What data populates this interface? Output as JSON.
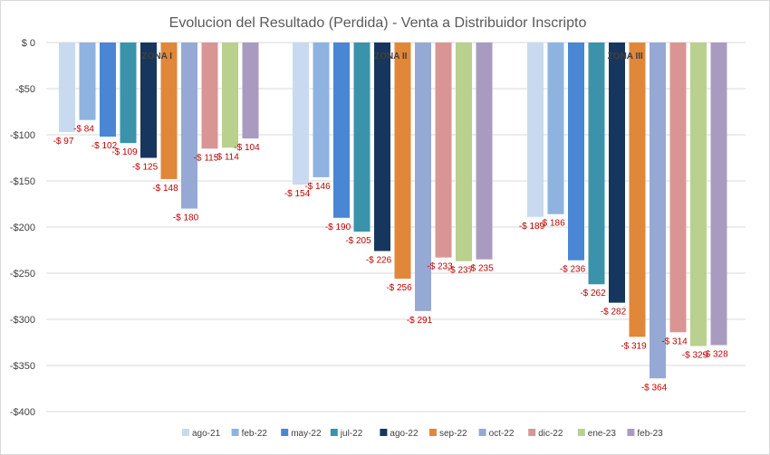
{
  "chart_data": {
    "type": "bar",
    "title": "Evolucion del Resultado (Perdida) - Venta a Distribuidor Inscripto",
    "categories": [
      "ZONA I",
      "ZONA II",
      "ZONA III"
    ],
    "ylim": [
      -400,
      0
    ],
    "y_ticks": [
      0,
      -50,
      -100,
      -150,
      -200,
      -250,
      -300,
      -350,
      -400
    ],
    "y_tick_labels": [
      "$ 0",
      "-$50",
      "-$100",
      "-$150",
      "-$200",
      "-$250",
      "-$300",
      "-$350",
      "-$400"
    ],
    "grid": true,
    "legend_position": "bottom",
    "series": [
      {
        "name": "ago-21",
        "color": "#c9daf0",
        "values": [
          -97,
          -154,
          -189
        ],
        "labels": [
          "-$ 97",
          "-$ 154",
          "-$ 189"
        ]
      },
      {
        "name": "feb-22",
        "color": "#8fb3e0",
        "values": [
          -84,
          -146,
          -186
        ],
        "labels": [
          "-$ 84",
          "-$ 146",
          "-$ 186"
        ]
      },
      {
        "name": "may-22",
        "color": "#4a86d4",
        "values": [
          -102,
          -190,
          -236
        ],
        "labels": [
          "-$ 102",
          "-$ 190",
          "-$ 236"
        ]
      },
      {
        "name": "jul-22",
        "color": "#3a93ab",
        "values": [
          -109,
          -205,
          -262
        ],
        "labels": [
          "-$ 109",
          "-$ 205",
          "-$ 262"
        ]
      },
      {
        "name": "ago-22",
        "color": "#17365d",
        "values": [
          -125,
          -226,
          -282
        ],
        "labels": [
          "-$ 125",
          "-$ 226",
          "-$ 282"
        ]
      },
      {
        "name": "sep-22",
        "color": "#e0873a",
        "values": [
          -148,
          -256,
          -319
        ],
        "labels": [
          "-$ 148",
          "-$ 256",
          "-$ 319"
        ]
      },
      {
        "name": "oct-22",
        "color": "#96a9d4",
        "values": [
          -180,
          -291,
          -364
        ],
        "labels": [
          "-$ 180",
          "-$ 291",
          "-$ 364"
        ]
      },
      {
        "name": "dic-22",
        "color": "#d99594",
        "values": [
          -115,
          -233,
          -314
        ],
        "labels": [
          "-$ 115",
          "-$ 233",
          "-$ 314"
        ]
      },
      {
        "name": "ene-23",
        "color": "#b9d08f",
        "values": [
          -114,
          -237,
          -329
        ],
        "labels": [
          "-$ 114",
          "-$ 237",
          "-$ 329"
        ]
      },
      {
        "name": "feb-23",
        "color": "#a99bc0",
        "values": [
          -104,
          -235,
          -328
        ],
        "labels": [
          "-$ 104",
          "-$ 235",
          "-$ 328"
        ]
      }
    ]
  }
}
